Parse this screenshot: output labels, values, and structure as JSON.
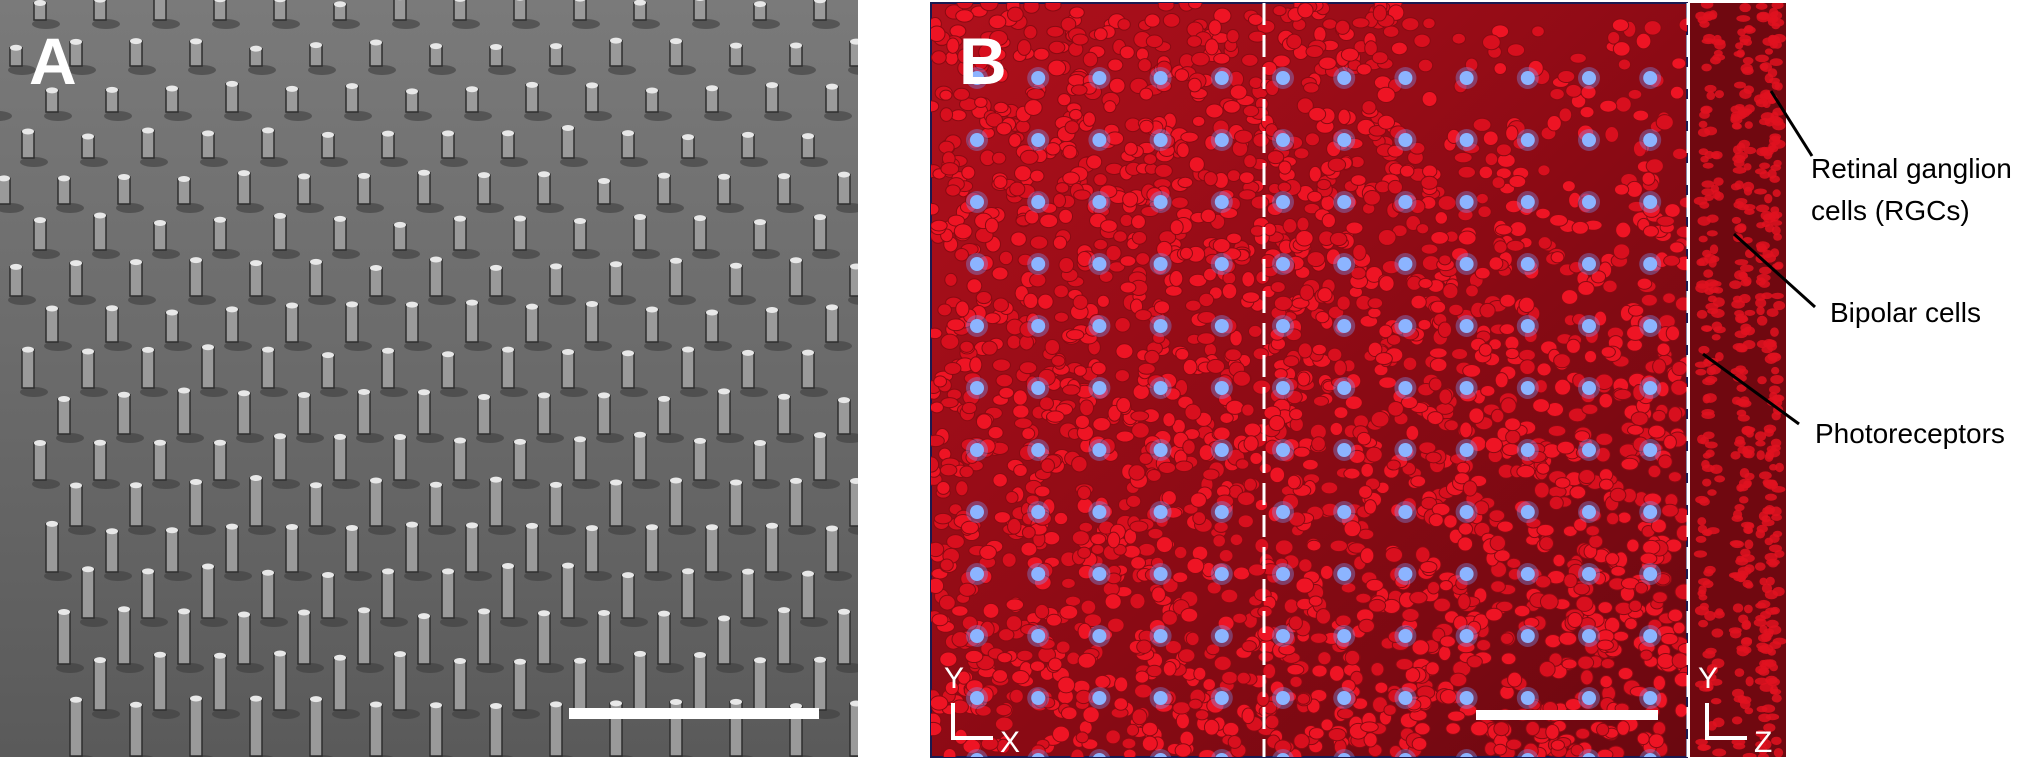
{
  "panels": [
    {
      "label": "A"
    },
    {
      "label": "B",
      "axes": [
        {
          "vertical": "Y",
          "horizontal": "X"
        },
        {
          "vertical": "Y",
          "horizontal": "Z"
        }
      ],
      "annotations": [
        [
          "Retinal ganglion",
          "cells (RGCs)"
        ],
        [
          "Bipolar cells"
        ],
        [
          "Photoreceptors"
        ]
      ]
    }
  ]
}
